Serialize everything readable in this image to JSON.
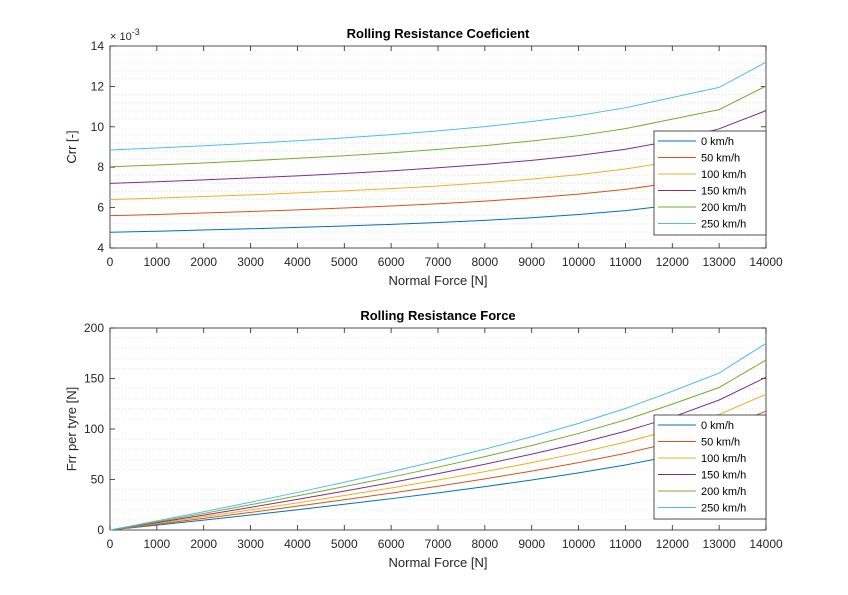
{
  "colors": {
    "series": [
      "#0072BD",
      "#D95319",
      "#EDB120",
      "#7E2F8E",
      "#77AC30",
      "#4DBEEE"
    ],
    "grid": "#e6e6e6",
    "axis": "#262626"
  },
  "chart_data": [
    {
      "type": "line",
      "title": "Rolling Resistance Coeficient",
      "xlabel": "Normal Force [N]",
      "ylabel": "Crr [-]",
      "y_exponent_label": "× 10^-3",
      "y_exponent_base": "× 10",
      "y_exponent_power": "-3",
      "xlim": [
        0,
        14000
      ],
      "ylim": [
        4,
        14
      ],
      "xticks": [
        0,
        1000,
        2000,
        3000,
        4000,
        5000,
        6000,
        7000,
        8000,
        9000,
        10000,
        11000,
        12000,
        13000,
        14000
      ],
      "yticks": [
        4,
        6,
        8,
        10,
        12,
        14
      ],
      "grid": "minor-dotted",
      "legend_position": "bottom-right",
      "x": [
        0,
        1000,
        2000,
        3000,
        4000,
        5000,
        6000,
        7000,
        8000,
        9000,
        10000,
        11000,
        12000,
        13000,
        14000
      ],
      "series": [
        {
          "name": "0 km/h",
          "values": [
            4.78,
            4.83,
            4.89,
            4.95,
            5.02,
            5.09,
            5.17,
            5.26,
            5.37,
            5.5,
            5.66,
            5.85,
            6.12,
            6.5,
            7.15
          ]
        },
        {
          "name": "50 km/h",
          "values": [
            5.6,
            5.66,
            5.73,
            5.81,
            5.89,
            5.98,
            6.08,
            6.19,
            6.32,
            6.48,
            6.67,
            6.9,
            7.23,
            7.65,
            8.4
          ]
        },
        {
          "name": "100 km/h",
          "values": [
            6.4,
            6.47,
            6.55,
            6.63,
            6.73,
            6.83,
            6.94,
            7.07,
            7.23,
            7.41,
            7.63,
            7.91,
            8.28,
            8.8,
            9.6
          ]
        },
        {
          "name": "150 km/h",
          "values": [
            7.2,
            7.28,
            7.37,
            7.47,
            7.57,
            7.69,
            7.82,
            7.97,
            8.14,
            8.34,
            8.58,
            8.89,
            9.31,
            9.9,
            10.8
          ]
        },
        {
          "name": "200 km/h",
          "values": [
            8.02,
            8.11,
            8.21,
            8.32,
            8.44,
            8.57,
            8.71,
            8.88,
            9.07,
            9.3,
            9.56,
            9.91,
            10.38,
            10.85,
            12.02
          ]
        },
        {
          "name": "250 km/h",
          "values": [
            8.85,
            8.95,
            9.06,
            9.18,
            9.31,
            9.45,
            9.61,
            9.8,
            10.01,
            10.26,
            10.56,
            10.94,
            11.45,
            11.95,
            13.2
          ]
        }
      ]
    },
    {
      "type": "line",
      "title": "Rolling Resistance Force",
      "xlabel": "Normal Force [N]",
      "ylabel": "Frr per tyre [N]",
      "xlim": [
        0,
        14000
      ],
      "ylim": [
        0,
        200
      ],
      "xticks": [
        0,
        1000,
        2000,
        3000,
        4000,
        5000,
        6000,
        7000,
        8000,
        9000,
        10000,
        11000,
        12000,
        13000,
        14000
      ],
      "yticks": [
        0,
        50,
        100,
        150,
        200
      ],
      "grid": "minor-dotted",
      "legend_position": "bottom-right",
      "x": [
        0,
        1000,
        2000,
        3000,
        4000,
        5000,
        6000,
        7000,
        8000,
        9000,
        10000,
        11000,
        12000,
        13000,
        14000
      ],
      "series": [
        {
          "name": "0 km/h",
          "values": [
            0,
            4.8,
            9.8,
            14.9,
            20.1,
            25.5,
            31.0,
            36.8,
            43.0,
            49.5,
            56.6,
            64.4,
            73.4,
            84.5,
            100.1
          ]
        },
        {
          "name": "50 km/h",
          "values": [
            0,
            5.7,
            11.5,
            17.4,
            23.6,
            29.9,
            36.5,
            43.3,
            50.6,
            58.3,
            66.7,
            75.9,
            86.8,
            99.5,
            117.6
          ]
        },
        {
          "name": "100 km/h",
          "values": [
            0,
            6.5,
            13.1,
            19.9,
            26.9,
            34.2,
            41.6,
            49.5,
            57.8,
            66.7,
            76.3,
            87.0,
            99.4,
            114.4,
            134.4
          ]
        },
        {
          "name": "150 km/h",
          "values": [
            0,
            7.3,
            14.7,
            22.4,
            30.3,
            38.5,
            46.9,
            55.8,
            65.1,
            75.1,
            85.8,
            97.8,
            111.7,
            128.7,
            151.2
          ]
        },
        {
          "name": "200 km/h",
          "values": [
            0,
            8.1,
            16.4,
            25.0,
            33.8,
            42.9,
            52.3,
            62.2,
            72.6,
            83.7,
            95.6,
            109.0,
            124.6,
            141.1,
            168.3
          ]
        },
        {
          "name": "250 km/h",
          "values": [
            0,
            9.0,
            18.1,
            27.5,
            37.2,
            47.3,
            57.7,
            68.6,
            80.1,
            92.3,
            105.6,
            120.3,
            137.4,
            155.4,
            184.8
          ]
        }
      ]
    }
  ]
}
